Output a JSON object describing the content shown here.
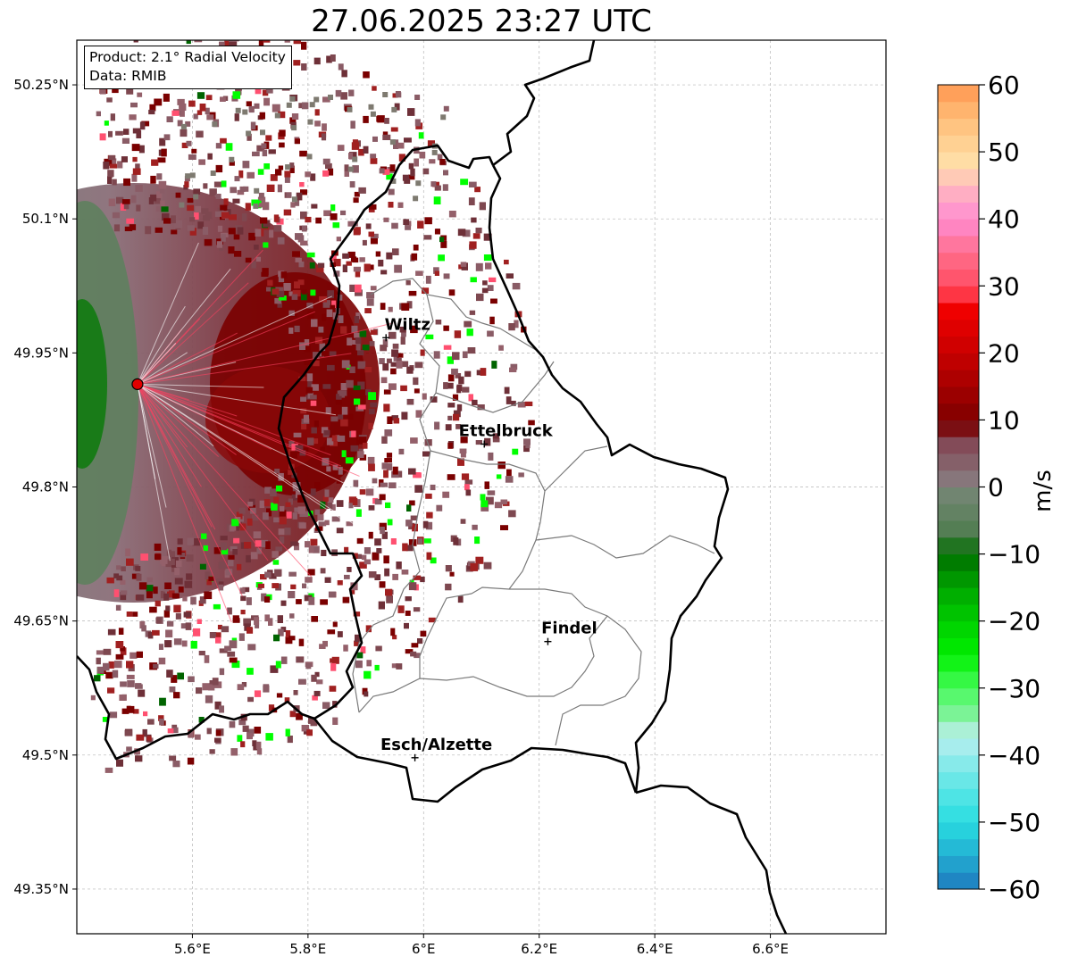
{
  "title": "27.06.2025 23:27 UTC",
  "info": {
    "product": "Product: 2.1° Radial Velocity",
    "data": "Data: RMIB"
  },
  "map": {
    "lon_range": [
      5.4,
      6.8
    ],
    "lat_range": [
      49.3,
      50.3
    ],
    "lon_ticks": [
      {
        "value": 5.6,
        "label": "5.6°E"
      },
      {
        "value": 5.8,
        "label": "5.8°E"
      },
      {
        "value": 6.0,
        "label": "6°E"
      },
      {
        "value": 6.2,
        "label": "6.2°E"
      },
      {
        "value": 6.4,
        "label": "6.4°E"
      },
      {
        "value": 6.6,
        "label": "6.6°E"
      }
    ],
    "lat_ticks": [
      {
        "value": 50.25,
        "label": "50.25°N"
      },
      {
        "value": 50.1,
        "label": "50.1°N"
      },
      {
        "value": 49.95,
        "label": "49.95°N"
      },
      {
        "value": 49.8,
        "label": "49.8°N"
      },
      {
        "value": 49.65,
        "label": "49.65°N"
      },
      {
        "value": 49.5,
        "label": "49.5°N"
      },
      {
        "value": 49.35,
        "label": "49.35°N"
      }
    ],
    "radar_site": {
      "lon": 5.505,
      "lat": 49.915,
      "color": "#e00000"
    },
    "cities": [
      {
        "name": "Wiltz",
        "lon": 5.935,
        "lat": 49.967
      },
      {
        "name": "Ettelbruck",
        "lon": 6.105,
        "lat": 49.848
      },
      {
        "name": "Findel",
        "lon": 6.215,
        "lat": 49.627
      },
      {
        "name": "Esch/Alzette",
        "lon": 5.985,
        "lat": 49.497
      }
    ]
  },
  "colorbar": {
    "label": "m/s",
    "min": -60,
    "max": 60,
    "ticks": [
      {
        "value": 60,
        "label": "60"
      },
      {
        "value": 50,
        "label": "50"
      },
      {
        "value": 40,
        "label": "40"
      },
      {
        "value": 30,
        "label": "30"
      },
      {
        "value": 20,
        "label": "20"
      },
      {
        "value": 10,
        "label": "10"
      },
      {
        "value": 0,
        "label": "0"
      },
      {
        "value": -10,
        "label": "−10"
      },
      {
        "value": -20,
        "label": "−20"
      },
      {
        "value": -30,
        "label": "−30"
      },
      {
        "value": -40,
        "label": "−40"
      },
      {
        "value": -50,
        "label": "−50"
      },
      {
        "value": -60,
        "label": "−60"
      }
    ],
    "colors": {
      "approaching_dark": "#006400",
      "approaching_bright": "#00ff00",
      "near_zero_green": "#5e805e",
      "near_zero_mauve": "#8a6e78",
      "receding_dark": "#7a0000",
      "receding_bright": "#ff0000",
      "pink": "#ff88cc",
      "orange": "#ff9944",
      "cyan": "#22ccdd",
      "blue": "#2277bb"
    }
  }
}
